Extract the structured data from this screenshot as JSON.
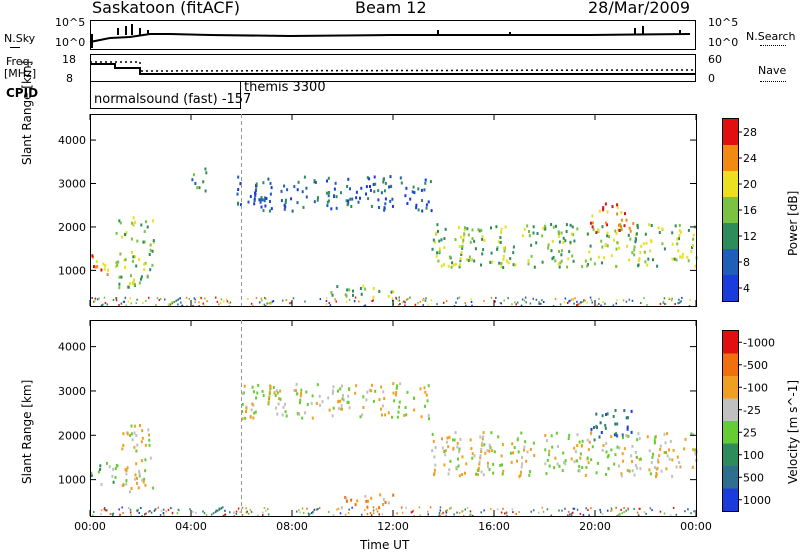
{
  "header": {
    "station": "Saskatoon (fitACF)",
    "beam": "Beam 12",
    "date": "28/Mar/2009"
  },
  "noise": {
    "left_label": "N.Sky",
    "right_label": "N.Search",
    "ytick_top": "10^5",
    "ytick_bottom": "10^0"
  },
  "freq": {
    "label_line1": "Freq.",
    "label_line2": "[MHz]",
    "ytick_top": "18",
    "ytick_bottom": "8",
    "right_label": "Nave",
    "right_tick_top": "60",
    "right_tick_bottom": "0"
  },
  "cpid": {
    "label": "CPID",
    "mode1": "normalsound (fast) -157",
    "mode2": "themis 3300"
  },
  "chart_data": [
    {
      "type": "heatmap",
      "name": "power",
      "title": "",
      "ylabel": "Slant Range [km]",
      "ylim": [
        180,
        4600
      ],
      "yticks": [
        1000,
        2000,
        3000,
        4000
      ],
      "colorbar_label": "Power [dB]",
      "colorbar_ticks": [
        "4",
        "8",
        "12",
        "16",
        "20",
        "24",
        "28"
      ],
      "colorbar_colors": [
        "#1a3cdc",
        "#1f5fb8",
        "#2e8c5a",
        "#7cc242",
        "#e8e020",
        "#f08a10",
        "#e01010"
      ],
      "regions": [
        {
          "t0": 0.0,
          "t1": 1.0,
          "r0": 900,
          "r1": 1400,
          "level": 5
        },
        {
          "t0": 1.0,
          "t1": 2.5,
          "r0": 600,
          "r1": 2300,
          "level": 3
        },
        {
          "t0": 4.0,
          "t1": 4.6,
          "r0": 2800,
          "r1": 3400,
          "level": 2
        },
        {
          "t0": 5.8,
          "t1": 13.5,
          "r0": 2400,
          "r1": 3200,
          "level": 1
        },
        {
          "t0": 9.5,
          "t1": 12.0,
          "r0": 400,
          "r1": 700,
          "level": 3
        },
        {
          "t0": 13.5,
          "t1": 24.0,
          "r0": 1100,
          "r1": 2100,
          "level": 3
        },
        {
          "t0": 19.8,
          "t1": 21.5,
          "r0": 1900,
          "r1": 2600,
          "level": 5
        }
      ]
    },
    {
      "type": "heatmap",
      "name": "velocity",
      "title": "",
      "ylabel": "Slant Range [km]",
      "xlabel": "Time UT",
      "ylim": [
        180,
        4600
      ],
      "yticks": [
        1000,
        2000,
        3000,
        4000
      ],
      "xticks": [
        "00:00",
        "04:00",
        "08:00",
        "12:00",
        "16:00",
        "20:00",
        "00:00"
      ],
      "colorbar_label": "Velocity [m s^-1]",
      "colorbar_ticks": [
        "1000",
        "500",
        "100",
        "25",
        "-25",
        "-100",
        "-500",
        "-1000"
      ],
      "colorbar_colors": [
        "#1a3cdc",
        "#2e6e8e",
        "#2e8c5a",
        "#66cc33",
        "#c0c0c0",
        "#f0a020",
        "#f07010",
        "#e01010"
      ],
      "regions": [
        {
          "t0": 0.0,
          "t1": 1.2,
          "r0": 900,
          "r1": 1400,
          "level": 3
        },
        {
          "t0": 1.2,
          "t1": 2.5,
          "r0": 700,
          "r1": 2300,
          "level": 4
        },
        {
          "t0": 5.8,
          "t1": 13.5,
          "r0": 2400,
          "r1": 3200,
          "level": 4
        },
        {
          "t0": 9.5,
          "t1": 12.0,
          "r0": 400,
          "r1": 700,
          "level": 5
        },
        {
          "t0": 13.5,
          "t1": 24.0,
          "r0": 1100,
          "r1": 2100,
          "level": 4
        },
        {
          "t0": 19.8,
          "t1": 21.5,
          "r0": 1900,
          "r1": 2600,
          "level": 1
        }
      ]
    }
  ]
}
